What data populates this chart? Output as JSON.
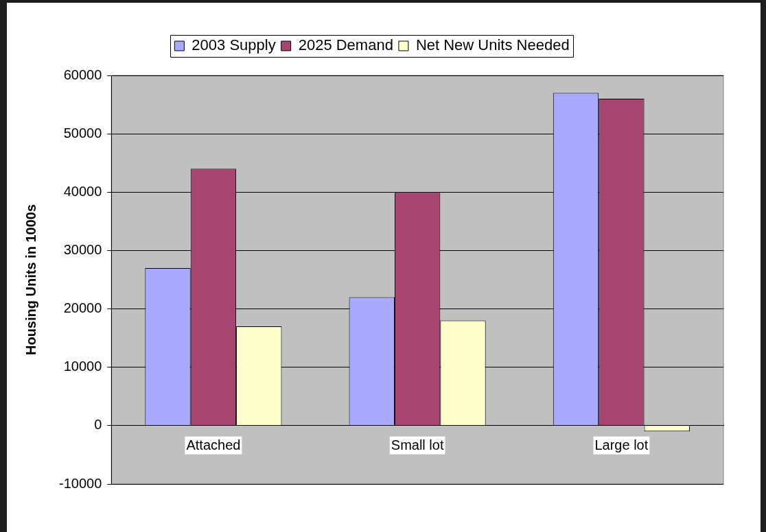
{
  "chart_data": {
    "type": "bar",
    "ylabel": "Housing Units in 1000s",
    "categories": [
      "Attached",
      "Small lot",
      "Large lot"
    ],
    "series": [
      {
        "name": "2003 Supply",
        "color": "#a9a9ff",
        "values": [
          27000,
          22000,
          57000
        ]
      },
      {
        "name": "2025 Demand",
        "color": "#a64472",
        "values": [
          44000,
          40000,
          56000
        ]
      },
      {
        "name": "Net New Units Needed",
        "color": "#ffffcc",
        "values": [
          17000,
          18000,
          -1000
        ]
      }
    ],
    "ylim": [
      -10000,
      60000
    ],
    "yticks": [
      -10000,
      0,
      10000,
      20000,
      30000,
      40000,
      50000,
      60000
    ],
    "grid": "y",
    "legend": "top"
  }
}
